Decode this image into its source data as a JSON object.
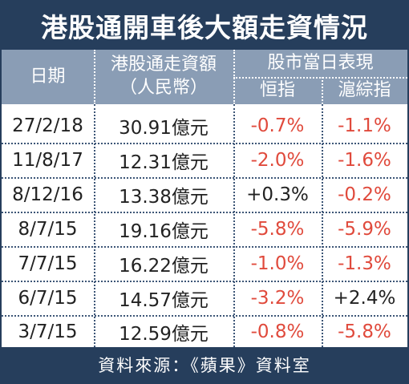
{
  "title": "港股通開車後大額走資情況",
  "headers": {
    "date": "日期",
    "amount_line1": "港股通走資額",
    "amount_line2": "（人民幣）",
    "market_group": "股市當日表現",
    "hsi": "恒指",
    "shanghai": "滬綜指"
  },
  "rows": [
    {
      "date": "27/2/18",
      "amount": "30.91億元",
      "hsi": "-0.7%",
      "shanghai": "-1.1%"
    },
    {
      "date": "11/8/17",
      "amount": "12.31億元",
      "hsi": "-2.0%",
      "shanghai": "-1.6%"
    },
    {
      "date": "8/12/16",
      "amount": "13.38億元",
      "hsi": "+0.3%",
      "shanghai": "-0.2%"
    },
    {
      "date": "8/7/15",
      "amount": "19.16億元",
      "hsi": "-5.8%",
      "shanghai": "-5.9%"
    },
    {
      "date": "7/7/15",
      "amount": "16.22億元",
      "hsi": "-1.0%",
      "shanghai": "-1.3%"
    },
    {
      "date": "6/7/15",
      "amount": "14.57億元",
      "hsi": "-3.2%",
      "shanghai": "+2.4%"
    },
    {
      "date": "3/7/15",
      "amount": "12.59億元",
      "hsi": "-0.8%",
      "shanghai": "-5.8%"
    }
  ],
  "source": "資料來源：《蘋果》資料室",
  "colors": {
    "title_bg": "#263e5c",
    "header_bg": "#8a9db5",
    "negative": "#e04a3c",
    "positive": "#222222"
  }
}
